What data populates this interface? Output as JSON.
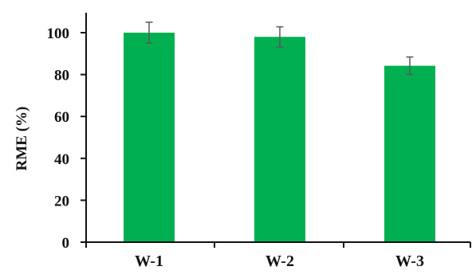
{
  "chart_data": {
    "type": "bar",
    "categories": [
      "W-1",
      "W-2",
      "W-3"
    ],
    "values": [
      100.0,
      98.0,
      84.2
    ],
    "error": [
      5.0,
      4.8,
      4.2
    ],
    "ylabel": "RME (%)",
    "ylim": [
      0,
      100
    ],
    "yticks": [
      0,
      20,
      40,
      60,
      80,
      100
    ],
    "ytick_labels": [
      "0",
      "20",
      "40",
      "60",
      "80",
      "100"
    ],
    "grid": false,
    "bar_color": "#00b050",
    "errorbar_color": "#595959",
    "axis_color": "#111111"
  }
}
